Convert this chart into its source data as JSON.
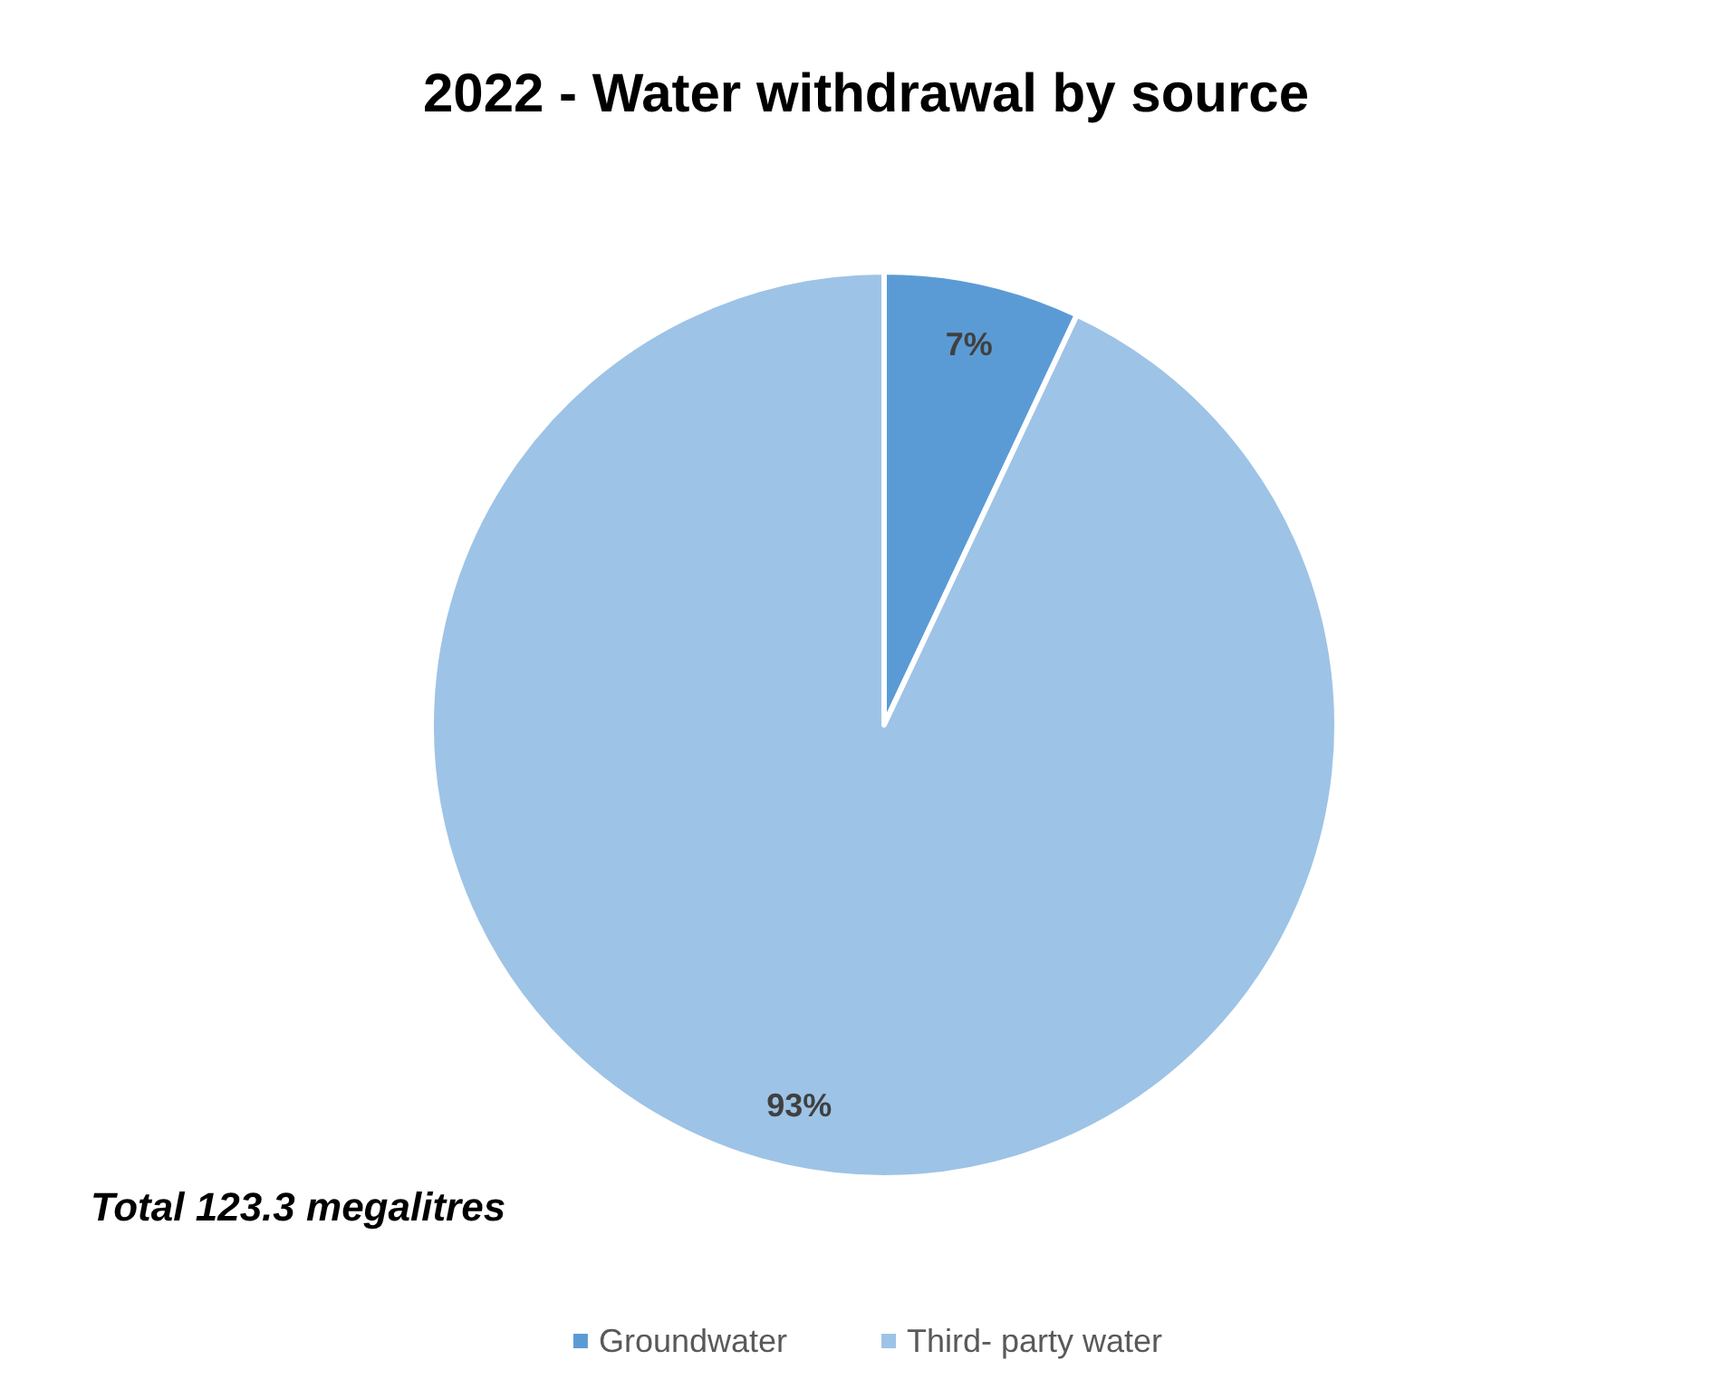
{
  "chart_data": {
    "type": "pie",
    "title": "2022 - Water withdrawal by source",
    "categories": [
      "Groundwater",
      "Third- party water"
    ],
    "values": [
      7,
      93
    ],
    "value_labels": [
      "7%",
      "93%"
    ],
    "colors": [
      "#5b9bd5",
      "#9dc3e6"
    ],
    "annotations": [
      "Total 123.3 megalitres"
    ],
    "legend": "bottom"
  }
}
